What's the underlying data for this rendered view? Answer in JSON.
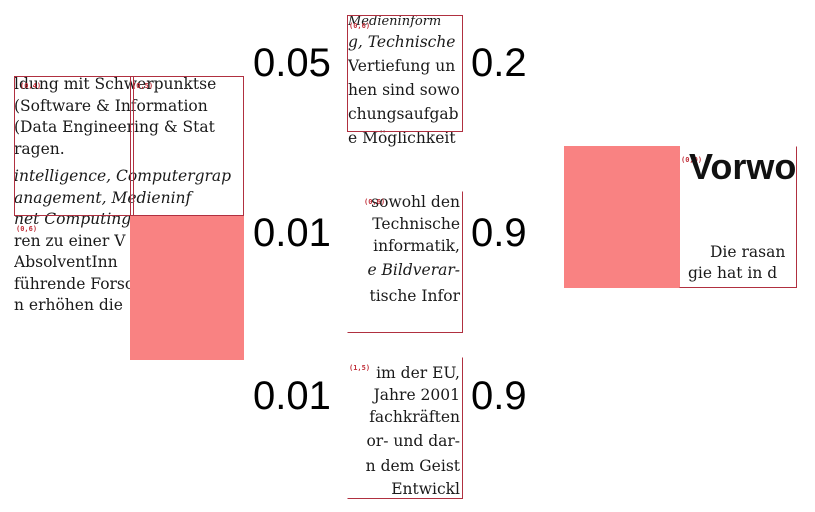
{
  "colors": {
    "highlight": "#f98282",
    "box_border": "#b03040",
    "tag_text": "#c0303a"
  },
  "crop_left": {
    "lines": [
      {
        "text": "ldung mit Schwerpunktse",
        "italic": false
      },
      {
        "text": " (Software & Information",
        "italic": false
      },
      {
        "text": " (Data Engineering & Stat",
        "italic": false
      },
      {
        "text": "ragen.",
        "italic": false
      },
      {
        "text": "intelligence, Computergrap",
        "italic": true
      },
      {
        "text": "anagement, Medieninf",
        "italic": true
      },
      {
        "text": "net Computing",
        "italic": true
      },
      {
        "text": "ren zu einer V",
        "italic": false
      },
      {
        "text": " AbsolventInn",
        "italic": false
      },
      {
        "text": "führende Forsc",
        "italic": false
      },
      {
        "text": "n erhöhen die",
        "italic": false
      }
    ],
    "tags": [
      "(0,4)",
      "(0,5)",
      "(0,6)"
    ]
  },
  "crop_top_mid": {
    "lines": [
      {
        "text": "Medieninform",
        "italic": true
      },
      {
        "text": "g, Technische",
        "italic": true
      },
      {
        "text": "Vertiefung un",
        "italic": false
      },
      {
        "text": "hen sind sowo",
        "italic": false
      },
      {
        "text": "chungsaufgab",
        "italic": false
      },
      {
        "text": "e Möglichkeit",
        "italic": false
      }
    ],
    "tag": "(0,6)"
  },
  "crop_mid_mid": {
    "lines": [
      {
        "text": "sowohl den",
        "italic": false
      },
      {
        "text": "Technische",
        "italic": false
      },
      {
        "text": "informatik,",
        "italic": false
      },
      {
        "text": "",
        "italic": false
      },
      {
        "text": "e Bildverar-",
        "italic": true
      },
      {
        "text": "tische Infor",
        "italic": false
      }
    ],
    "tag": "(0,6)"
  },
  "crop_bot_mid": {
    "lines": [
      {
        "text": "im der EU,",
        "italic": false
      },
      {
        "text": "Jahre 2001",
        "italic": false
      },
      {
        "text": "fachkräften",
        "italic": false
      },
      {
        "text": "or- und dar-",
        "italic": false
      },
      {
        "text": "n dem Geist",
        "italic": false
      },
      {
        "text": "Entwickl",
        "italic": false
      }
    ],
    "tag": "(1,5)"
  },
  "crop_right": {
    "heading": "Vorwo",
    "lines": [
      {
        "text": "Die rasan",
        "italic": false
      },
      {
        "text": "gie hat in d",
        "italic": false
      }
    ],
    "tag": "(0,0)"
  },
  "scores": {
    "row1_left": "0.05",
    "row1_right": "0.2",
    "row2_left": "0.01",
    "row2_right": "0.9",
    "row3_left": "0.01",
    "row3_right": "0.9"
  }
}
